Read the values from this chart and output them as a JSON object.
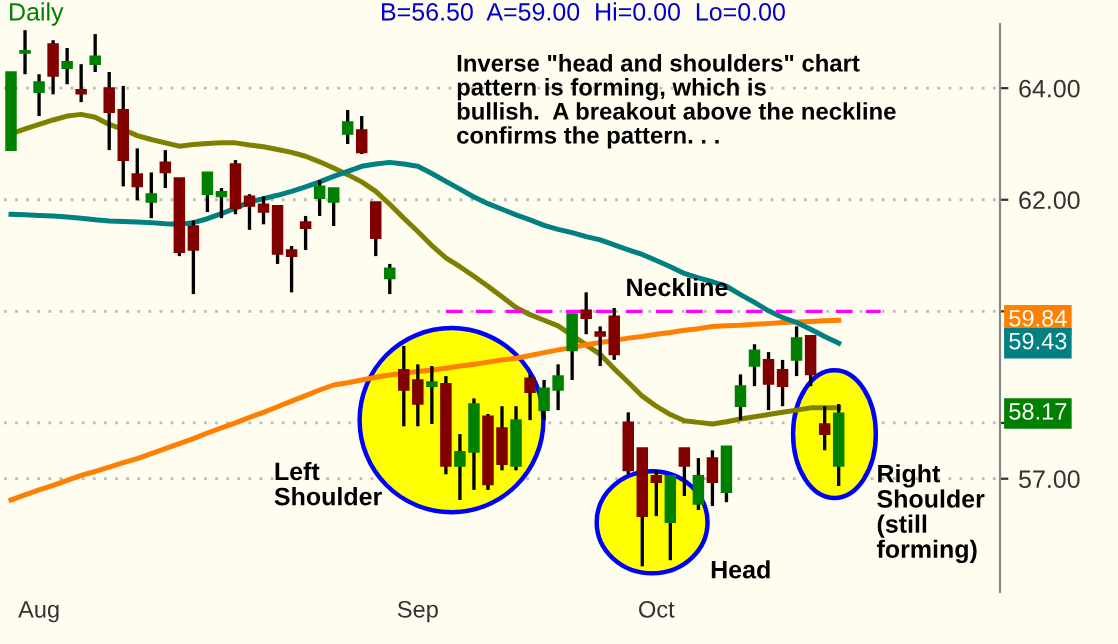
{
  "chart_data": {
    "type": "candlestick",
    "title": "Daily",
    "subtitle": "B=56.50  A=59.00  Hi=0.00  Lo=0.00",
    "categories": [
      null,
      null,
      "Aug",
      null,
      null,
      null,
      null,
      null,
      null,
      null,
      null,
      null,
      null,
      null,
      null,
      null,
      null,
      null,
      null,
      null,
      null,
      null,
      null,
      null,
      null,
      null,
      null,
      null,
      null,
      "Sep",
      null,
      null,
      null,
      null,
      null,
      null,
      null,
      null,
      null,
      null,
      null,
      null,
      null,
      null,
      null,
      null,
      "Oct",
      null,
      null,
      null,
      null,
      null,
      null,
      null,
      null,
      null,
      null,
      null,
      null,
      null,
      null,
      null,
      null,
      null,
      null,
      null,
      null,
      null,
      null,
      null,
      null
    ],
    "ohlc": [
      [
        62.89,
        64.29,
        62.89,
        64.29
      ],
      [
        64.63,
        65.04,
        64.25,
        64.67
      ],
      [
        63.93,
        64.25,
        63.5,
        64.11
      ],
      [
        64.79,
        64.86,
        63.89,
        64.22
      ],
      [
        64.36,
        64.72,
        64.07,
        64.47
      ],
      [
        63.97,
        64.43,
        63.75,
        63.9
      ],
      [
        64.43,
        64.97,
        64.29,
        64.57
      ],
      [
        64.0,
        64.29,
        62.89,
        63.57
      ],
      [
        63.61,
        64.04,
        62.24,
        62.71
      ],
      [
        62.46,
        62.92,
        61.99,
        62.24
      ],
      [
        61.96,
        62.49,
        61.67,
        62.1
      ],
      [
        62.67,
        62.89,
        62.21,
        62.49
      ],
      [
        62.39,
        62.39,
        60.99,
        61.06
      ],
      [
        61.53,
        61.63,
        60.31,
        61.1
      ],
      [
        62.1,
        62.49,
        61.78,
        62.49
      ],
      [
        62.06,
        62.21,
        61.67,
        62.14
      ],
      [
        62.64,
        62.71,
        61.74,
        61.85
      ],
      [
        62.06,
        62.1,
        61.46,
        61.89
      ],
      [
        61.92,
        62.06,
        61.56,
        61.78
      ],
      [
        61.89,
        61.89,
        60.85,
        61.03
      ],
      [
        61.1,
        61.17,
        60.34,
        60.99
      ],
      [
        61.6,
        61.71,
        61.1,
        61.49
      ],
      [
        62.03,
        62.35,
        61.71,
        62.24
      ],
      [
        61.96,
        62.21,
        61.53,
        62.21
      ],
      [
        63.18,
        63.61,
        63.0,
        63.39
      ],
      [
        63.25,
        63.5,
        62.82,
        62.85
      ],
      [
        61.96,
        61.96,
        60.99,
        61.31
      ],
      [
        60.59,
        60.85,
        60.31,
        60.77
      ],
      [
        58.95,
        59.38,
        57.94,
        58.59
      ],
      [
        58.77,
        59.05,
        57.94,
        58.34
      ],
      [
        58.66,
        59.02,
        57.98,
        58.73
      ],
      [
        58.7,
        58.84,
        57.08,
        57.23
      ],
      [
        57.23,
        57.8,
        56.62,
        57.48
      ],
      [
        57.48,
        58.44,
        56.8,
        58.34
      ],
      [
        58.12,
        58.16,
        56.8,
        56.9
      ],
      [
        57.91,
        58.3,
        57.15,
        57.26
      ],
      [
        57.23,
        58.3,
        57.15,
        58.05
      ],
      [
        58.8,
        58.87,
        58.05,
        58.55
      ],
      [
        58.23,
        58.77,
        58.05,
        58.62
      ],
      [
        58.59,
        59.05,
        58.23,
        58.84
      ],
      [
        59.3,
        59.95,
        58.77,
        59.95
      ],
      [
        60.02,
        60.34,
        59.59,
        59.88
      ],
      [
        59.63,
        59.73,
        59.02,
        59.56
      ],
      [
        59.91,
        60.06,
        59.13,
        59.23
      ],
      [
        58.01,
        58.19,
        57.08,
        57.15
      ],
      [
        57.55,
        57.55,
        55.43,
        56.33
      ],
      [
        57.05,
        57.15,
        56.33,
        56.94
      ],
      [
        56.22,
        57.05,
        55.54,
        57.05
      ],
      [
        57.55,
        57.55,
        56.69,
        57.23
      ],
      [
        56.55,
        57.37,
        56.44,
        57.05
      ],
      [
        57.37,
        57.51,
        56.51,
        56.94
      ],
      [
        56.76,
        57.58,
        56.58,
        57.58
      ],
      [
        58.3,
        58.87,
        58.05,
        58.66
      ],
      [
        59.02,
        59.41,
        58.66,
        59.3
      ],
      [
        59.13,
        59.27,
        58.23,
        58.7
      ],
      [
        58.95,
        59.13,
        58.3,
        58.66
      ],
      [
        59.13,
        59.73,
        58.84,
        59.52
      ],
      [
        59.56,
        59.56,
        58.66,
        58.87
      ],
      [
        57.98,
        58.3,
        57.51,
        57.8
      ],
      [
        57.23,
        58.34,
        56.87,
        58.17
      ],
      null,
      null,
      null,
      null,
      null,
      null,
      null,
      null,
      null,
      null,
      null
    ],
    "colors": [
      "#008000",
      "#008000",
      "#008000",
      "#800000",
      "#008000",
      "#800000",
      "#008000",
      "#800000",
      "#800000",
      "#800000",
      "#008000",
      "#800000",
      "#800000",
      "#800000",
      "#008000",
      "#008000",
      "#800000",
      "#800000",
      "#800000",
      "#800000",
      "#800000",
      "#800000",
      "#008000",
      "#008000",
      "#008000",
      "#800000",
      "#800000",
      "#008000",
      "#800000",
      "#800000",
      "#008000",
      "#800000",
      "#008000",
      "#008000",
      "#800000",
      "#800000",
      "#008000",
      "#800000",
      "#008000",
      "#008000",
      "#008000",
      "#800000",
      "#800000",
      "#800000",
      "#800000",
      "#800000",
      "#800000",
      "#008000",
      "#800000",
      "#008000",
      "#800000",
      "#008000",
      "#008000",
      "#008000",
      "#800000",
      "#800000",
      "#008000",
      "#800000",
      "#800000",
      "#008000",
      null,
      null,
      null,
      null,
      null,
      null,
      null,
      null,
      null,
      null,
      null
    ],
    "value_labels": [
      null,
      null,
      null,
      null,
      null,
      null,
      null,
      null,
      null,
      null,
      null,
      null,
      null,
      null,
      null,
      null,
      null,
      null,
      null,
      null,
      null,
      null,
      null,
      null,
      null,
      null,
      null,
      null,
      null,
      null,
      null,
      null,
      null,
      null,
      null,
      null,
      null,
      null,
      null,
      null,
      null,
      null,
      null,
      null,
      null,
      null,
      null,
      null,
      null,
      null,
      null,
      null,
      null,
      null,
      null,
      null,
      null,
      null,
      null,
      "58.17",
      null,
      null,
      null,
      null,
      null,
      null,
      null,
      null,
      null,
      null,
      null
    ],
    "series": [
      {
        "type": "line",
        "color": "#808000",
        "values": [
          63.18,
          63.27,
          63.35,
          63.43,
          63.5,
          63.53,
          63.48,
          63.35,
          63.26,
          63.15,
          63.08,
          63.02,
          62.96,
          62.99,
          63.01,
          63.02,
          63.02,
          62.98,
          62.95,
          62.9,
          62.85,
          62.78,
          62.68,
          62.57,
          62.45,
          62.32,
          62.15,
          61.92,
          61.67,
          61.43,
          61.18,
          60.96,
          60.8,
          60.63,
          60.45,
          60.26,
          60.07,
          59.94,
          59.84,
          59.74,
          59.57,
          59.4,
          59.23,
          58.97,
          58.73,
          58.48,
          58.3,
          58.15,
          58.04,
          58.01,
          57.98,
          58.02,
          58.07,
          58.11,
          58.15,
          58.19,
          58.23,
          58.27,
          58.27,
          58.27,
          null,
          null,
          null,
          null,
          null,
          null,
          null,
          null,
          null,
          null,
          null
        ]
      },
      {
        "type": "line",
        "color": "#ff8000",
        "values": [
          56.62,
          56.71,
          56.8,
          56.88,
          56.97,
          57.06,
          57.13,
          57.21,
          57.29,
          57.36,
          57.45,
          57.54,
          57.63,
          57.72,
          57.82,
          57.91,
          58.0,
          58.1,
          58.19,
          58.29,
          58.39,
          58.49,
          58.59,
          58.68,
          58.72,
          58.77,
          58.82,
          58.86,
          58.89,
          58.92,
          58.95,
          58.98,
          59.02,
          59.05,
          59.09,
          59.13,
          59.16,
          59.21,
          59.26,
          59.31,
          59.35,
          59.4,
          59.44,
          59.48,
          59.52,
          59.55,
          59.59,
          59.62,
          59.66,
          59.69,
          59.73,
          59.74,
          59.75,
          59.77,
          59.78,
          59.8,
          59.81,
          59.82,
          59.83,
          59.84,
          null,
          null,
          null,
          null,
          null,
          null,
          null,
          null,
          null,
          null,
          null
        ]
      },
      {
        "type": "line",
        "color": "#008080",
        "values": [
          61.74,
          61.73,
          61.72,
          61.71,
          61.69,
          61.67,
          61.64,
          61.62,
          61.61,
          61.6,
          61.59,
          61.57,
          61.56,
          61.59,
          61.66,
          61.75,
          61.85,
          61.96,
          62.02,
          62.08,
          62.15,
          62.23,
          62.32,
          62.42,
          62.51,
          62.6,
          62.64,
          62.67,
          62.64,
          62.6,
          62.47,
          62.33,
          62.19,
          62.05,
          61.93,
          61.83,
          61.73,
          61.64,
          61.54,
          61.47,
          61.41,
          61.34,
          61.28,
          61.19,
          61.1,
          61.02,
          60.91,
          60.8,
          60.68,
          60.6,
          60.53,
          60.45,
          60.3,
          60.16,
          60.01,
          59.89,
          59.8,
          59.68,
          59.55,
          59.43,
          null,
          null,
          null,
          null,
          null,
          null,
          null,
          null,
          null,
          null,
          null
        ]
      },
      {
        "type": "line",
        "color": "#ff00ff",
        "line_style": "dashed",
        "values": [
          null,
          null,
          null,
          null,
          null,
          null,
          null,
          null,
          null,
          null,
          null,
          null,
          null,
          null,
          null,
          null,
          null,
          null,
          null,
          null,
          null,
          null,
          null,
          null,
          null,
          null,
          null,
          null,
          null,
          null,
          null,
          60.0,
          60.0,
          60.0,
          60.0,
          60.0,
          60.0,
          60.0,
          60.0,
          60.0,
          60.0,
          60.0,
          60.0,
          60.0,
          60.0,
          60.0,
          60.0,
          60.0,
          60.0,
          60.0,
          60.0,
          60.0,
          60.0,
          60.0,
          60.0,
          60.0,
          60.0,
          60.0,
          60.0,
          60.0,
          60.0,
          60.0,
          60.0,
          null,
          null,
          null,
          null,
          null,
          null,
          null,
          null
        ]
      }
    ],
    "annotations": [
      "Inverse \"head and shoulders\" chart\npattern is forming, which is\nbullish.  A breakout above the neckline\nconfirms the pattern. . .",
      "Neckline",
      "Left\nShoulder",
      "Head",
      "Right\nShoulder\n(still\nforming)",
      {
        "text": "59.84",
        "y": 59.84
      },
      {
        "text": "59.43",
        "y": 59.43
      }
    ],
    "ylim": [
      54.97,
      65.15
    ],
    "yticks": [
      {
        "value": 57,
        "label": "57.00"
      },
      {
        "value": 58,
        "label": null
      },
      {
        "value": 60,
        "label": null
      },
      {
        "value": 62,
        "label": "62.00"
      },
      {
        "value": 64,
        "label": "64.00"
      }
    ],
    "grid": "y"
  }
}
